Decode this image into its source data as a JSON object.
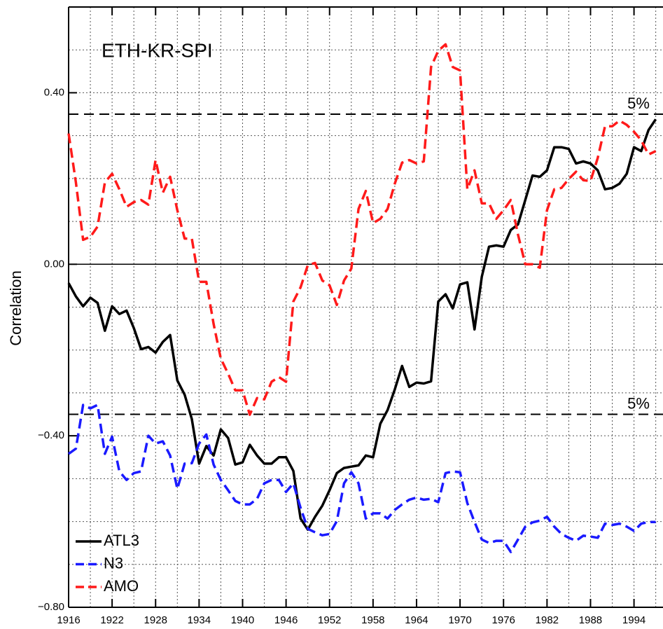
{
  "chart_data": {
    "type": "line",
    "title": "ETH-KR-SPI",
    "ylabel": "Correlation",
    "x": [
      1916,
      1917,
      1918,
      1919,
      1920,
      1921,
      1922,
      1923,
      1924,
      1925,
      1926,
      1927,
      1928,
      1929,
      1930,
      1931,
      1932,
      1933,
      1934,
      1935,
      1936,
      1937,
      1938,
      1939,
      1940,
      1941,
      1942,
      1943,
      1944,
      1945,
      1946,
      1947,
      1948,
      1949,
      1950,
      1951,
      1952,
      1953,
      1954,
      1955,
      1956,
      1957,
      1958,
      1959,
      1960,
      1961,
      1962,
      1963,
      1964,
      1965,
      1966,
      1967,
      1968,
      1969,
      1970,
      1971,
      1972,
      1973,
      1974,
      1975,
      1976,
      1977,
      1978,
      1979,
      1980,
      1981,
      1982,
      1983,
      1984,
      1985,
      1986,
      1987,
      1988,
      1989,
      1990,
      1991,
      1992,
      1993,
      1994,
      1995,
      1996,
      1997
    ],
    "series": [
      {
        "name": "ATL3",
        "color": "#000000",
        "dashed": false,
        "values": [
          -0.044,
          -0.075,
          -0.098,
          -0.078,
          -0.09,
          -0.155,
          -0.098,
          -0.116,
          -0.108,
          -0.149,
          -0.198,
          -0.193,
          -0.206,
          -0.181,
          -0.165,
          -0.271,
          -0.304,
          -0.361,
          -0.465,
          -0.424,
          -0.446,
          -0.385,
          -0.405,
          -0.467,
          -0.462,
          -0.421,
          -0.446,
          -0.465,
          -0.465,
          -0.45,
          -0.45,
          -0.482,
          -0.593,
          -0.619,
          -0.589,
          -0.563,
          -0.527,
          -0.487,
          -0.475,
          -0.472,
          -0.469,
          -0.446,
          -0.45,
          -0.372,
          -0.34,
          -0.292,
          -0.237,
          -0.286,
          -0.276,
          -0.278,
          -0.273,
          -0.087,
          -0.07,
          -0.103,
          -0.047,
          -0.042,
          -0.152,
          -0.029,
          0.041,
          0.044,
          0.041,
          0.08,
          0.093,
          0.15,
          0.207,
          0.204,
          0.219,
          0.273,
          0.273,
          0.269,
          0.235,
          0.24,
          0.235,
          0.219,
          0.175,
          0.178,
          0.188,
          0.211,
          0.273,
          0.264,
          0.313,
          0.338
        ]
      },
      {
        "name": "N3",
        "color": "#1a1aff",
        "dashed": true,
        "values": [
          -0.442,
          -0.43,
          -0.328,
          -0.336,
          -0.328,
          -0.442,
          -0.402,
          -0.483,
          -0.503,
          -0.487,
          -0.483,
          -0.4,
          -0.418,
          -0.413,
          -0.446,
          -0.524,
          -0.465,
          -0.464,
          -0.418,
          -0.397,
          -0.467,
          -0.503,
          -0.527,
          -0.552,
          -0.56,
          -0.56,
          -0.547,
          -0.511,
          -0.503,
          -0.503,
          -0.531,
          -0.511,
          -0.568,
          -0.617,
          -0.625,
          -0.632,
          -0.629,
          -0.599,
          -0.511,
          -0.485,
          -0.511,
          -0.593,
          -0.581,
          -0.581,
          -0.593,
          -0.573,
          -0.56,
          -0.549,
          -0.544,
          -0.549,
          -0.547,
          -0.555,
          -0.487,
          -0.483,
          -0.485,
          -0.557,
          -0.601,
          -0.642,
          -0.65,
          -0.645,
          -0.645,
          -0.671,
          -0.642,
          -0.612,
          -0.602,
          -0.598,
          -0.589,
          -0.612,
          -0.629,
          -0.638,
          -0.645,
          -0.633,
          -0.635,
          -0.638,
          -0.605,
          -0.608,
          -0.605,
          -0.612,
          -0.622,
          -0.605,
          -0.601,
          -0.601
        ]
      },
      {
        "name": "AMO",
        "color": "#ff1a1a",
        "dashed": true,
        "values": [
          0.305,
          0.191,
          0.057,
          0.064,
          0.088,
          0.191,
          0.211,
          0.175,
          0.134,
          0.145,
          0.15,
          0.139,
          0.243,
          0.167,
          0.204,
          0.126,
          0.06,
          0.06,
          -0.041,
          -0.041,
          -0.139,
          -0.22,
          -0.255,
          -0.294,
          -0.294,
          -0.351,
          -0.312,
          -0.315,
          -0.274,
          -0.263,
          -0.274,
          -0.087,
          -0.054,
          -0.002,
          0.003,
          -0.038,
          -0.049,
          -0.095,
          -0.038,
          -0.01,
          0.129,
          0.171,
          0.096,
          0.106,
          0.129,
          0.188,
          0.237,
          0.243,
          0.235,
          0.24,
          0.46,
          0.498,
          0.513,
          0.46,
          0.452,
          0.175,
          0.219,
          0.142,
          0.142,
          0.106,
          0.126,
          0.15,
          0.069,
          0.0,
          0.0,
          -0.008,
          0.126,
          0.175,
          0.178,
          0.199,
          0.216,
          0.196,
          0.194,
          0.248,
          0.322,
          0.322,
          0.335,
          0.325,
          0.309,
          0.289,
          0.256,
          0.264
        ]
      }
    ],
    "xlim": [
      1916,
      1998
    ],
    "xticks": [
      1916,
      1922,
      1928,
      1934,
      1940,
      1946,
      1952,
      1958,
      1964,
      1970,
      1976,
      1982,
      1988,
      1994
    ],
    "xgrid": [
      1919,
      1922,
      1925,
      1928,
      1931,
      1934,
      1937,
      1940,
      1943,
      1946,
      1949,
      1952,
      1955,
      1958,
      1961,
      1964,
      1967,
      1970,
      1973,
      1976,
      1979,
      1982,
      1985,
      1988,
      1991,
      1994,
      1997
    ],
    "ylim": [
      -0.8,
      0.6
    ],
    "yticks": [
      {
        "value": -0.8,
        "label": "−0.80"
      },
      {
        "value": -0.4,
        "label": "−0.40"
      },
      {
        "value": 0,
        "label": "0.00"
      },
      {
        "value": 0.4,
        "label": "0.40"
      }
    ],
    "ygrid": [
      -0.7,
      -0.6,
      -0.5,
      -0.4,
      -0.3,
      -0.2,
      -0.1,
      0.1,
      0.2,
      0.3,
      0.4,
      0.5
    ],
    "reference_lines": [
      {
        "value": 0.35,
        "label": "5%"
      },
      {
        "value": -0.35,
        "label": "5%"
      }
    ],
    "zero_line": 0,
    "grid": true,
    "legend": "lower left"
  }
}
